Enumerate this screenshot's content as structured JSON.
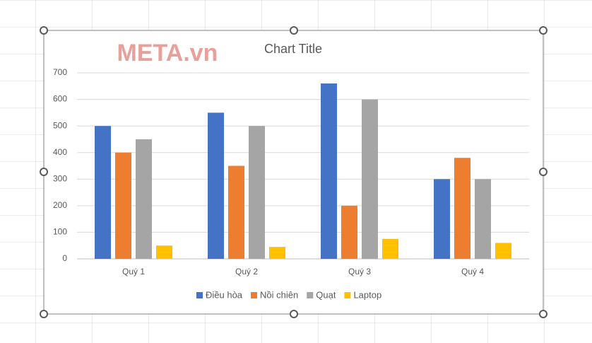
{
  "chart_data": {
    "type": "bar",
    "title": "Chart Title",
    "watermark": "META.vn",
    "categories": [
      "Quý 1",
      "Quý 2",
      "Quý 3",
      "Quý 4"
    ],
    "series": [
      {
        "name": "Điều hòa",
        "color": "#4472c4",
        "values": [
          500,
          550,
          660,
          300
        ]
      },
      {
        "name": "Nồi chiên",
        "color": "#ed7d31",
        "values": [
          400,
          350,
          200,
          380
        ]
      },
      {
        "name": "Quạt",
        "color": "#a5a5a5",
        "values": [
          450,
          500,
          600,
          300
        ]
      },
      {
        "name": "Laptop",
        "color": "#ffc000",
        "values": [
          50,
          45,
          75,
          60
        ]
      }
    ],
    "ylim": [
      0,
      700
    ],
    "yticks": [
      0,
      100,
      200,
      300,
      400,
      500,
      600,
      700
    ],
    "grid": true,
    "legend": "bottom"
  }
}
